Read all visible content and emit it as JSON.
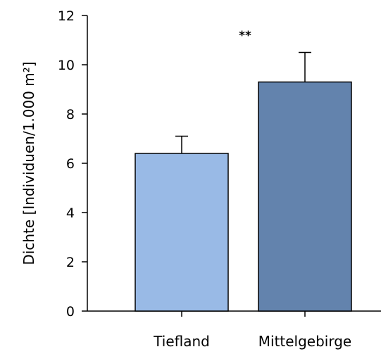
{
  "chart_data": {
    "type": "bar",
    "title": "",
    "xlabel": "",
    "ylabel": "Dichte [Individuen/1.000 m²]",
    "ylim": [
      0,
      12
    ],
    "yticks": [
      0,
      2,
      4,
      6,
      8,
      10,
      12
    ],
    "ytick_labels": [
      "0",
      "2",
      "4",
      "6",
      "8",
      "10",
      "12"
    ],
    "categories": [
      "Tiefland",
      "Mittelgebirge"
    ],
    "values": [
      6.4,
      9.3
    ],
    "error_upper": [
      0.7,
      1.2
    ],
    "colors": [
      "#99bae6",
      "#6383ad"
    ],
    "annotations": [
      {
        "text": "**",
        "category_index": 1,
        "y": 11.2
      }
    ],
    "grid": false,
    "legend": "none"
  }
}
